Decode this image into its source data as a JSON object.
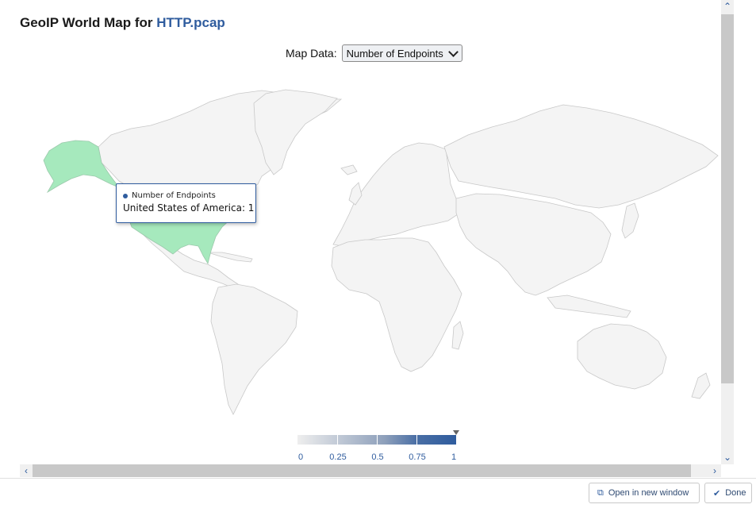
{
  "header": {
    "title_prefix": "GeoIP World Map for ",
    "file_name": "HTTP.pcap"
  },
  "controls": {
    "map_data_label": "Map Data:",
    "map_data_selected": "Number of Endpoints"
  },
  "tooltip": {
    "series_name": "Number of Endpoints",
    "text": "United States of America: 1"
  },
  "legend": {
    "ticks": [
      "0",
      "0.25",
      "0.5",
      "0.75",
      "1"
    ],
    "colors": [
      "#eeeeee",
      "#2f5c9e"
    ]
  },
  "map": {
    "highlighted_country": "United States of America",
    "highlight_color": "#a6e9bd",
    "land_color": "#f4f4f4",
    "border_color": "#c8c8c8"
  },
  "footer": {
    "open_window_label": "Open in new window",
    "done_label": "Done"
  },
  "icons": {
    "open_window": "external-window-icon",
    "done": "check-icon"
  }
}
